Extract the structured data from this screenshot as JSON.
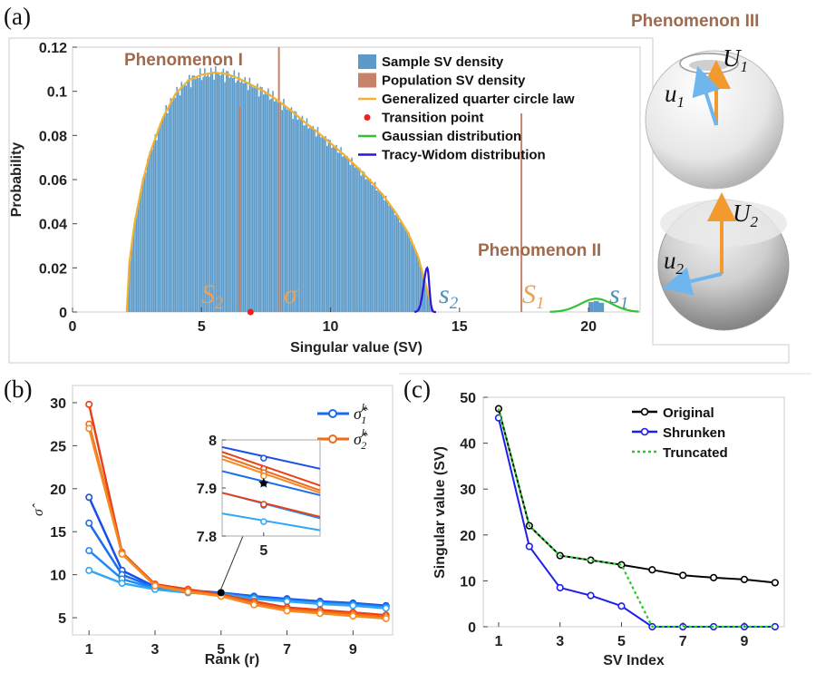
{
  "panel_labels": {
    "a": "(a)",
    "b": "(b)",
    "c": "(c)"
  },
  "colors": {
    "hist": "#5b9ac9",
    "population": "#c8826a",
    "qcl": "#f2b12e",
    "transition": "#ee1f1f",
    "gaussian": "#33c233",
    "tracy_widom": "#2b17d9",
    "phenomenon": "#a06a4e",
    "annotation_orange": "#f0a050",
    "annotation_blue": "#4f8fbe",
    "original": "#000000",
    "shrunken": "#1e1eea",
    "truncated": "#22cc22",
    "sigma1_family": [
      "#1a4fe8",
      "#1a6cf0",
      "#1e8af5",
      "#30a6f8"
    ],
    "sigma2_family": [
      "#e8401a",
      "#f06a1a",
      "#f58a22"
    ]
  },
  "chart_data": [
    {
      "id": "panel-a",
      "type": "bar",
      "xlabel": "Singular value (SV)",
      "ylabel": "Probability",
      "xlim": [
        0,
        22
      ],
      "ylim": [
        0,
        0.12
      ],
      "xticks": [
        0,
        5,
        10,
        15,
        20
      ],
      "yticks": [
        0,
        0.02,
        0.04,
        0.06,
        0.08,
        0.1,
        0.12
      ],
      "ytick_labels": [
        "0",
        "0.02",
        "0.04",
        "0.06",
        "0.08",
        "0.1",
        "0.12"
      ],
      "legend": [
        "Sample SV density",
        "Population SV density",
        "Generalized quarter circle law",
        "Transition point",
        "Gaussian distribution",
        "Tracy-Widom distribution"
      ],
      "bulk_support": [
        2.1,
        14.0
      ],
      "bulk_density": [
        [
          2.1,
          0.0
        ],
        [
          2.2,
          0.022
        ],
        [
          2.4,
          0.04
        ],
        [
          2.7,
          0.058
        ],
        [
          3.0,
          0.072
        ],
        [
          3.5,
          0.088
        ],
        [
          4.0,
          0.099
        ],
        [
          4.5,
          0.105
        ],
        [
          5.0,
          0.1075
        ],
        [
          5.5,
          0.1085
        ],
        [
          6.0,
          0.1078
        ],
        [
          6.5,
          0.1055
        ],
        [
          7.0,
          0.1025
        ],
        [
          7.5,
          0.0995
        ],
        [
          8.0,
          0.0955
        ],
        [
          8.5,
          0.091
        ],
        [
          9.0,
          0.086
        ],
        [
          9.5,
          0.0815
        ],
        [
          10.0,
          0.0765
        ],
        [
          10.5,
          0.0715
        ],
        [
          11.0,
          0.066
        ],
        [
          11.5,
          0.06
        ],
        [
          12.0,
          0.0535
        ],
        [
          12.5,
          0.0455
        ],
        [
          13.0,
          0.036
        ],
        [
          13.4,
          0.025
        ],
        [
          13.7,
          0.012
        ],
        [
          13.9,
          0.003
        ],
        [
          14.0,
          0.0
        ]
      ],
      "population_lines": [
        [
          6.5,
          0.093
        ],
        [
          8.0,
          0.12
        ],
        [
          17.4,
          0.09
        ]
      ],
      "transition_point": [
        6.9,
        0
      ],
      "tracy_widom": {
        "center": 13.75,
        "height": 0.02
      },
      "gaussian": {
        "center": 20.3,
        "sd": 0.62,
        "height": 0.006
      },
      "outlier_bins": [
        [
          20.1,
          0.0045
        ],
        [
          20.3,
          0.005
        ],
        [
          20.5,
          0.0042
        ]
      ],
      "annotations": {
        "phenomenon1": "Phenomenon I",
        "phenomenon2": "Phenomenon II",
        "phenomenon3": "Phenomenon III"
      },
      "math_labels": {
        "S2": "S",
        "S2_sub": "2",
        "sigma": "σ",
        "s2": "s",
        "s2_sub": "2",
        "S1": "S",
        "S1_sub": "1",
        "s1": "s",
        "s1_sub": "1"
      }
    },
    {
      "id": "panel-b",
      "type": "line",
      "xlabel": "Rank (r)",
      "ylabel": "σ̂",
      "xlim": [
        0.5,
        10.2
      ],
      "ylim": [
        3,
        32
      ],
      "xticks": [
        1,
        3,
        5,
        7,
        9
      ],
      "yticks": [
        5,
        10,
        15,
        20,
        25,
        30
      ],
      "x": [
        1,
        2,
        3,
        4,
        5,
        6,
        7,
        8,
        9,
        10
      ],
      "legend": [
        {
          "name": "σ̂",
          "sub": "1",
          "sup": "k"
        },
        {
          "name": "σ̂",
          "sub": "2",
          "sup": "k"
        }
      ],
      "series": [
        {
          "name": "sigma1_k1",
          "group": 1,
          "values": [
            19.0,
            10.5,
            8.6,
            8.2,
            7.9,
            7.5,
            7.2,
            6.9,
            6.7,
            6.4
          ]
        },
        {
          "name": "sigma1_k2",
          "group": 1,
          "values": [
            16.0,
            10.0,
            8.5,
            8.1,
            7.85,
            7.4,
            7.1,
            6.8,
            6.6,
            6.3
          ]
        },
        {
          "name": "sigma1_k3",
          "group": 1,
          "values": [
            12.8,
            9.5,
            8.4,
            8.0,
            7.8,
            7.3,
            7.0,
            6.7,
            6.5,
            6.2
          ]
        },
        {
          "name": "sigma1_k4",
          "group": 1,
          "values": [
            10.5,
            9.0,
            8.3,
            7.9,
            7.75,
            7.2,
            6.9,
            6.6,
            6.4,
            6.1
          ]
        },
        {
          "name": "sigma2_k1",
          "group": 2,
          "values": [
            29.8,
            12.6,
            8.9,
            8.3,
            7.7,
            6.9,
            6.2,
            5.9,
            5.6,
            5.3
          ]
        },
        {
          "name": "sigma2_k2",
          "group": 2,
          "values": [
            27.5,
            12.5,
            8.8,
            8.1,
            7.6,
            6.7,
            6.0,
            5.7,
            5.4,
            5.1
          ]
        },
        {
          "name": "sigma2_k3",
          "group": 2,
          "values": [
            27.0,
            12.4,
            8.7,
            8.0,
            7.5,
            6.5,
            5.8,
            5.5,
            5.2,
            4.9
          ]
        }
      ],
      "highlight_point": [
        5,
        7.91
      ],
      "inset": {
        "xlim": [
          4.3,
          5.95
        ],
        "ylim": [
          7.8,
          8.0
        ],
        "xticks": [
          5
        ],
        "yticks": [
          7.8,
          7.9,
          8.0
        ],
        "ytick_labels": [
          "7.8",
          "7.9",
          "8"
        ],
        "lines": [
          {
            "group": 1,
            "y0": 7.985,
            "y1": 7.94,
            "marker": 7.962
          },
          {
            "group": 2,
            "y0": 7.975,
            "y1": 7.905,
            "marker": 7.94
          },
          {
            "group": 2,
            "y0": 7.967,
            "y1": 7.895,
            "marker": 7.932
          },
          {
            "group": 2,
            "y0": 7.96,
            "y1": 7.89,
            "marker": 7.925
          },
          {
            "group": 1,
            "y0": 7.935,
            "y1": 7.885,
            "marker": 7.91
          },
          {
            "group": 1,
            "y0": 7.89,
            "y1": 7.837,
            "marker": 7.864
          },
          {
            "group": 2,
            "y0": 7.89,
            "y1": 7.84,
            "marker": 7.866
          },
          {
            "group": 1,
            "y0": 7.847,
            "y1": 7.812,
            "marker": 7.83
          }
        ],
        "highlight": [
          5,
          7.91
        ]
      }
    },
    {
      "id": "panel-c",
      "type": "line",
      "xlabel": "SV Index",
      "ylabel": "Singular value (SV)",
      "xlim": [
        0.5,
        10.3
      ],
      "ylim": [
        0,
        50
      ],
      "xticks": [
        1,
        3,
        5,
        7,
        9
      ],
      "yticks": [
        0,
        10,
        20,
        30,
        40,
        50
      ],
      "x": [
        1,
        2,
        3,
        4,
        5,
        6,
        7,
        8,
        9,
        10
      ],
      "legend": [
        "Original",
        "Shrunken",
        "Truncated"
      ],
      "series": [
        {
          "name": "Original",
          "values": [
            47.5,
            22.0,
            15.5,
            14.5,
            13.5,
            12.4,
            11.2,
            10.7,
            10.3,
            9.6
          ]
        },
        {
          "name": "Shrunken",
          "values": [
            45.5,
            17.5,
            8.5,
            6.8,
            4.5,
            0,
            0,
            0,
            0,
            0
          ]
        },
        {
          "name": "Truncated",
          "values": [
            47.5,
            22.0,
            15.5,
            14.5,
            13.5,
            0,
            0,
            0,
            0,
            0
          ]
        }
      ]
    }
  ],
  "sphere_labels": {
    "top_U": "U",
    "top_U_sub": "1",
    "top_u": "u",
    "top_u_sub": "1",
    "bottom_U": "U",
    "bottom_U_sub": "2",
    "bottom_u": "u",
    "bottom_u_sub": "2"
  }
}
